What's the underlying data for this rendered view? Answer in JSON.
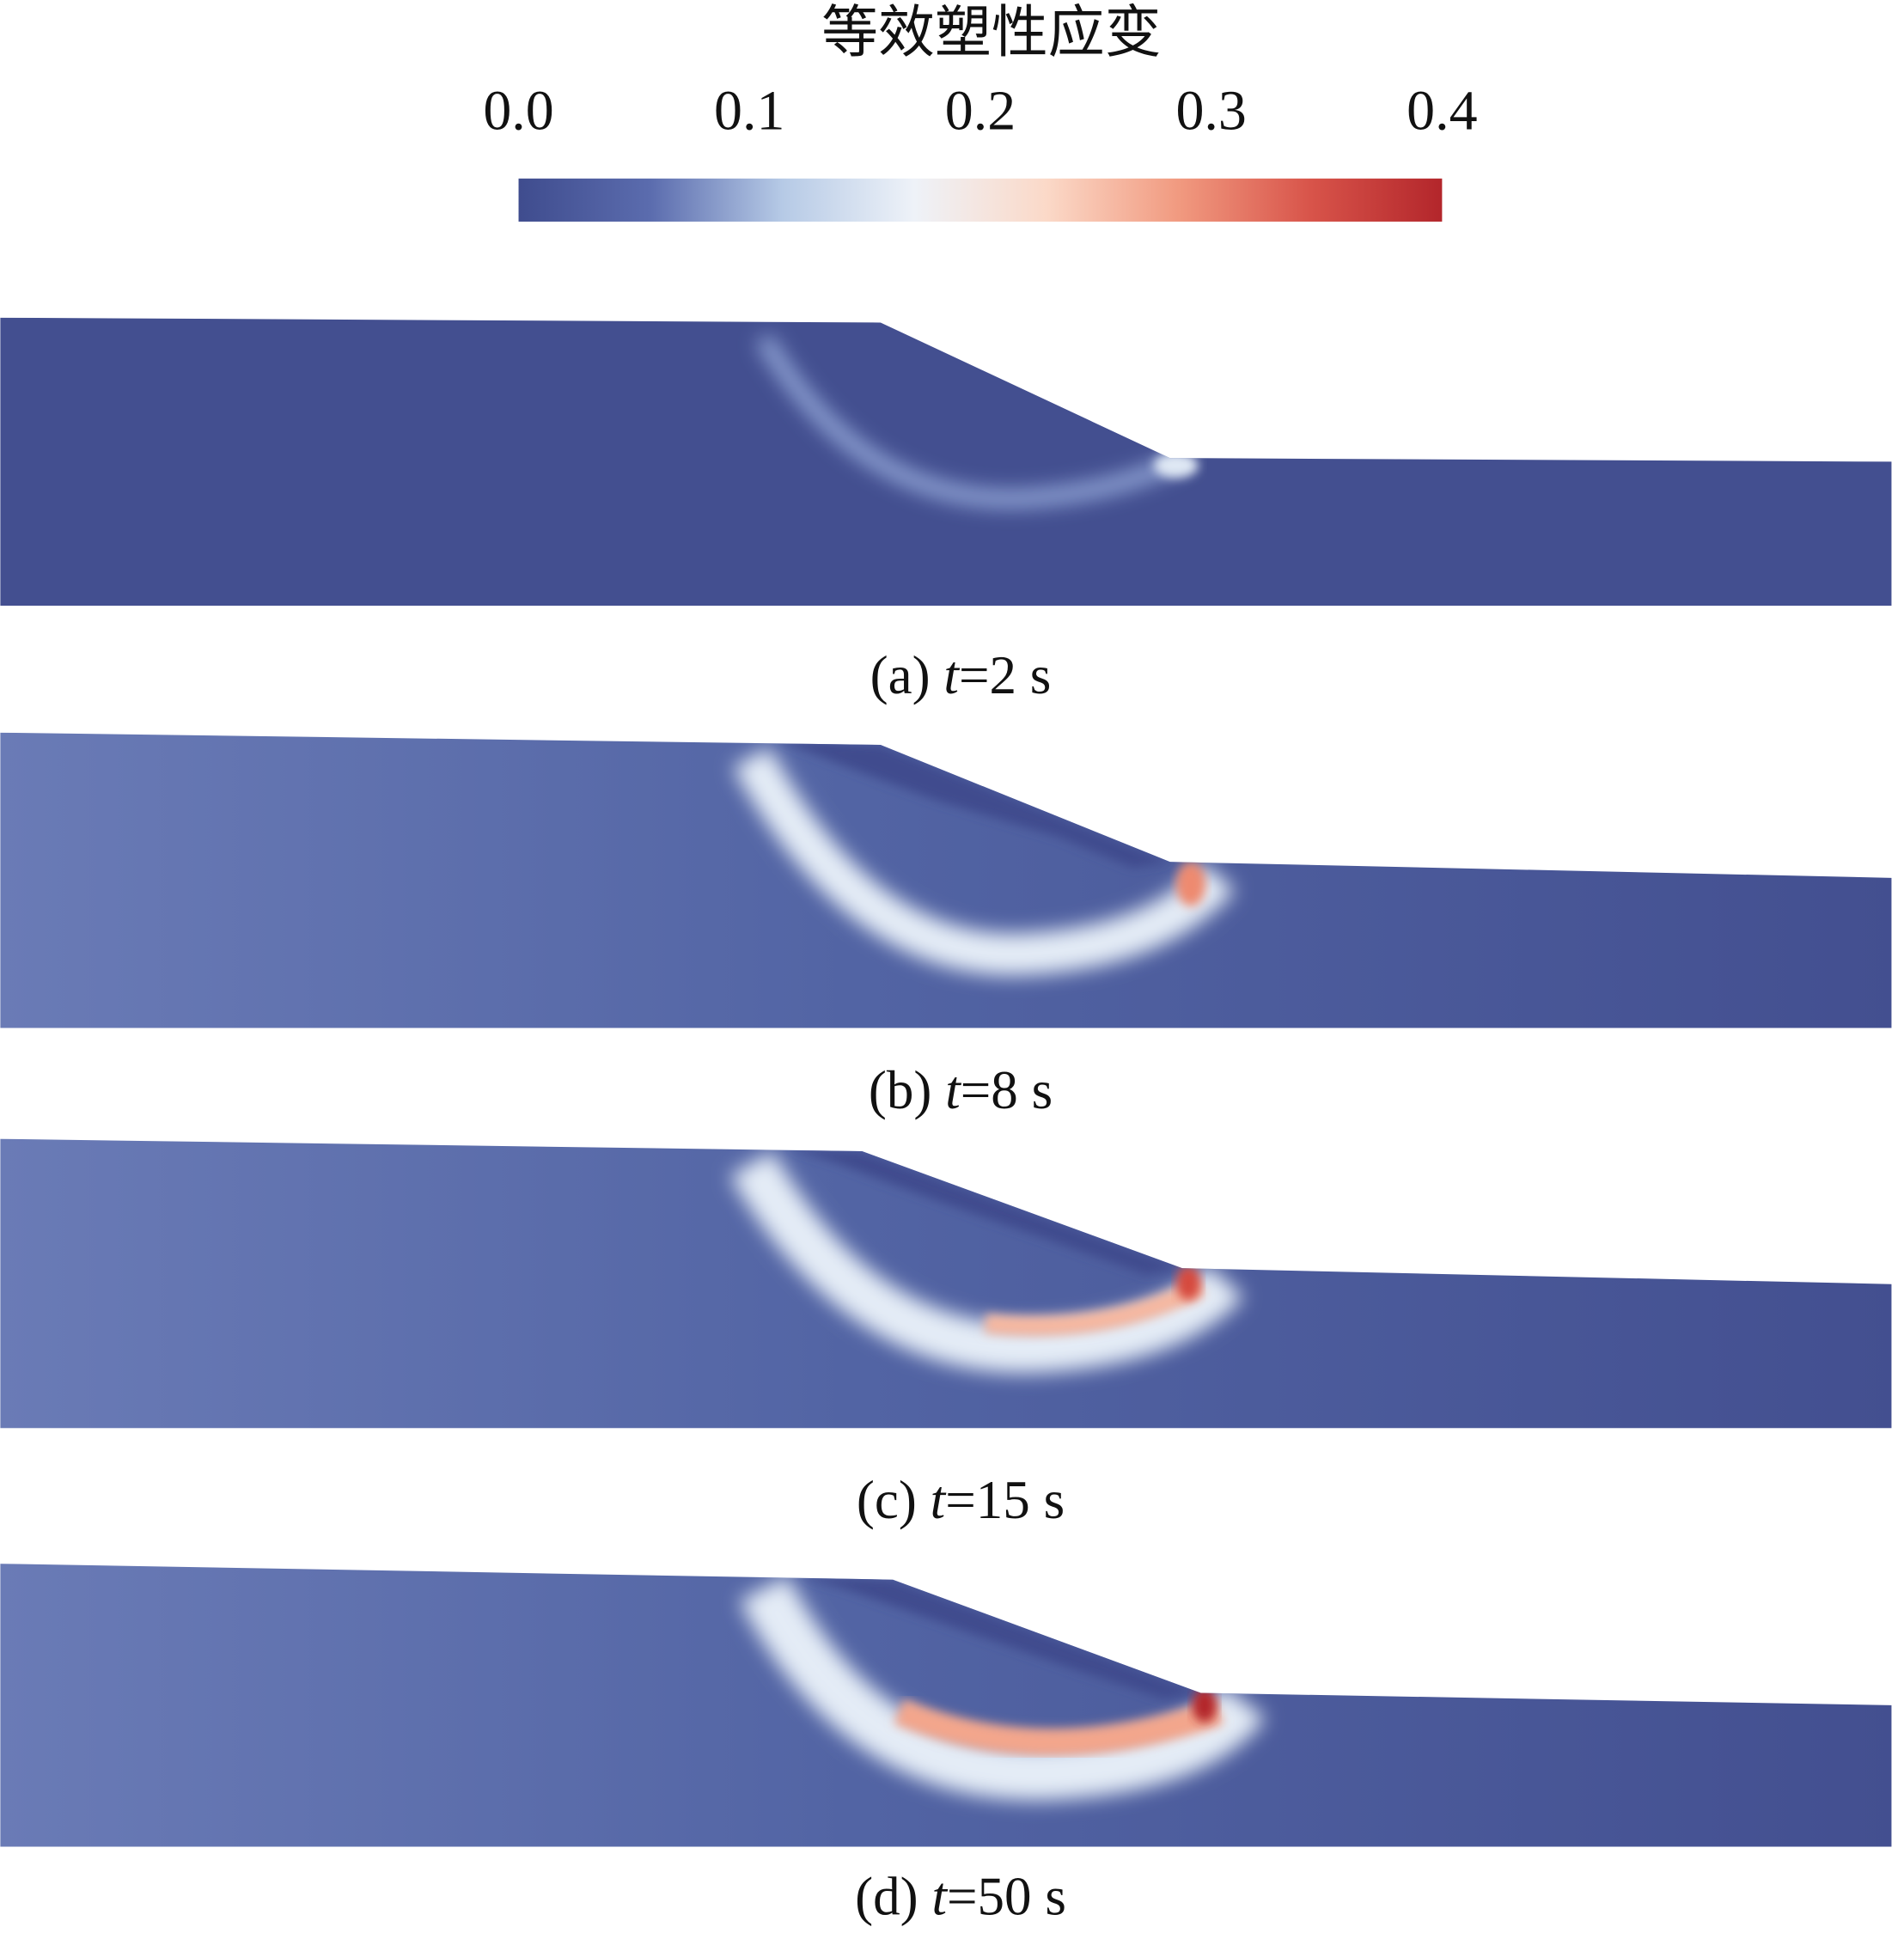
{
  "colorbar": {
    "title": "等效塑性应变",
    "range": [
      0,
      0.4
    ],
    "ticks": [
      {
        "value": 0,
        "label": "0.0"
      },
      0.1,
      0.2,
      0.3,
      0.4
    ],
    "colors": [
      "#3f4c8e",
      "#5b6cae",
      "#b6cae6",
      "#eef2f8",
      "#fbd9c8",
      "#f19a80",
      "#d8544a",
      "#b3262b"
    ]
  },
  "panels": [
    {
      "label": "(a)",
      "variable": "t",
      "value": "=2 s"
    },
    {
      "label": "(b)",
      "variable": "t",
      "value": "=8 s"
    },
    {
      "label": "(c)",
      "variable": "t",
      "value": "=15 s"
    },
    {
      "label": "(d)",
      "variable": "t",
      "value": "=50 s"
    }
  ]
}
